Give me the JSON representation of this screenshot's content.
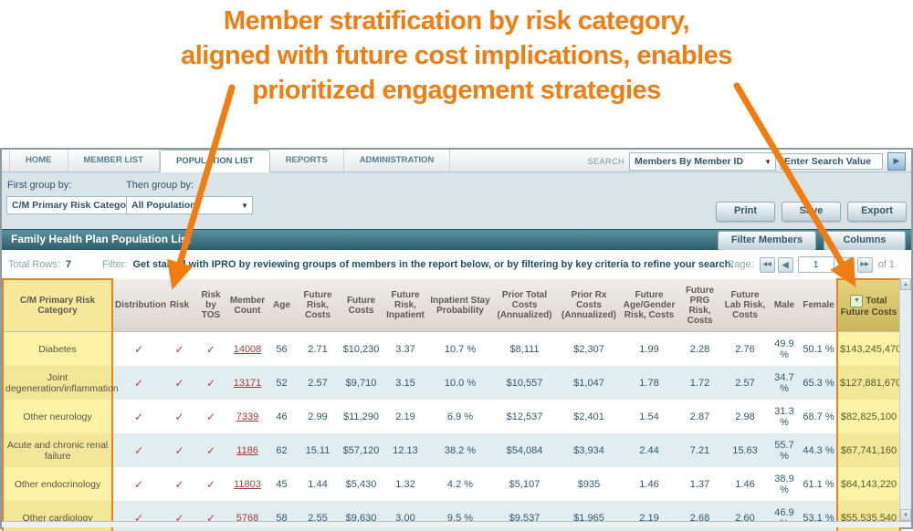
{
  "annotation": {
    "lines": [
      "Member stratification by risk category,",
      "aligned with future cost implications, enables",
      "prioritized engagement strategies"
    ]
  },
  "nav": {
    "tabs": [
      "HOME",
      "MEMBER LIST",
      "POPULATION LIST",
      "REPORTS",
      "ADMINISTRATION"
    ],
    "active_tab": "POPULATION LIST"
  },
  "search": {
    "label": "SEARCH",
    "type_value": "Members By Member ID",
    "input_value": "Enter Search Value"
  },
  "group_by": {
    "first_label": "First group by:",
    "first_value": "C/M Primary Risk Category",
    "then_label": "Then group by:",
    "then_value": "All Population"
  },
  "actions": {
    "print": "Print",
    "save": "Save",
    "export": "Export",
    "filter_members": "Filter Members",
    "columns": "Columns"
  },
  "titlebar": {
    "title": "Family Health Plan Population List"
  },
  "status": {
    "total_rows_label": "Total Rows:",
    "total_rows_value": "7",
    "filter_label": "Filter:",
    "filter_text": "Get started with IPRO by reviewing groups of members in the report below, or by filtering by key criteria to refine your search.",
    "page_label": "Page:",
    "page_value": "1",
    "page_of_label": "of 1"
  },
  "icons": {
    "check": "✓",
    "sort_desc": "▼",
    "select_caret": "▼",
    "go_arrow": "▶",
    "page_first": "◀◀",
    "page_prev": "◀",
    "page_next": "▶",
    "page_last": "▶▶",
    "scroll_up": "▲",
    "scroll_down": "▼"
  },
  "table": {
    "columns": [
      "C/M Primary Risk Category",
      "Distribution",
      "Risk",
      "Risk by TOS",
      "Member Count",
      "Age",
      "Future Risk, Costs",
      "Future Costs",
      "Future Risk, Inpatient",
      "Inpatient Stay Probability",
      "Prior Total Costs (Annualized)",
      "Prior Rx Costs (Annualized)",
      "Future Age/Gender Risk, Costs",
      "Future PRG Risk, Costs",
      "Future Lab Risk, Costs",
      "Male",
      "Female",
      "Total Future Costs"
    ],
    "rows": [
      [
        "Diabetes",
        true,
        true,
        true,
        "14008",
        "56",
        "2.71",
        "$10,230",
        "3.37",
        "10.7 %",
        "$8,111",
        "$2,307",
        "1.99",
        "2.28",
        "2.76",
        "49.9 %",
        "50.1 %",
        "$143,245,470"
      ],
      [
        "Joint degeneration/inflammation",
        true,
        true,
        true,
        "13171",
        "52",
        "2.57",
        "$9,710",
        "3.15",
        "10.0 %",
        "$10,557",
        "$1,047",
        "1.78",
        "1.72",
        "2.57",
        "34.7 %",
        "65.3 %",
        "$127,881,670"
      ],
      [
        "Other neurology",
        true,
        true,
        true,
        "7339",
        "46",
        "2.99",
        "$11,290",
        "2.19",
        "6.9 %",
        "$12,537",
        "$2,401",
        "1.54",
        "2.87",
        "2.98",
        "31.3 %",
        "68.7 %",
        "$82,825,100"
      ],
      [
        "Acute and chronic renal failure",
        true,
        true,
        true,
        "1186",
        "62",
        "15.11",
        "$57,120",
        "12.13",
        "38.2 %",
        "$54,084",
        "$3,934",
        "2.44",
        "7.21",
        "15.63",
        "55.7 %",
        "44.3 %",
        "$67,741,160"
      ],
      [
        "Other endocrinology",
        true,
        true,
        true,
        "11803",
        "45",
        "1.44",
        "$5,430",
        "1.32",
        "4.2 %",
        "$5,107",
        "$935",
        "1.46",
        "1.37",
        "1.46",
        "38.9 %",
        "61.1 %",
        "$64,143,220"
      ],
      [
        "Other cardiology",
        true,
        true,
        true,
        "5768",
        "58",
        "2.55",
        "$9,630",
        "3.00",
        "9.5 %",
        "$9,537",
        "$1,965",
        "2.19",
        "2.68",
        "2.60",
        "46.9 %",
        "53.1 %",
        "$55,535,540"
      ]
    ]
  },
  "colors": {
    "annotation_orange": "#F07D12",
    "highlight_yellow": "#FCF2A6",
    "highlight_border": "#E8821E",
    "titlebar_teal": "#2D5D69",
    "row_alt_blue": "#E2EDF0",
    "link_red": "#A83C32",
    "value_navy": "#2E5A73",
    "check_maroon": "#B0453A"
  }
}
